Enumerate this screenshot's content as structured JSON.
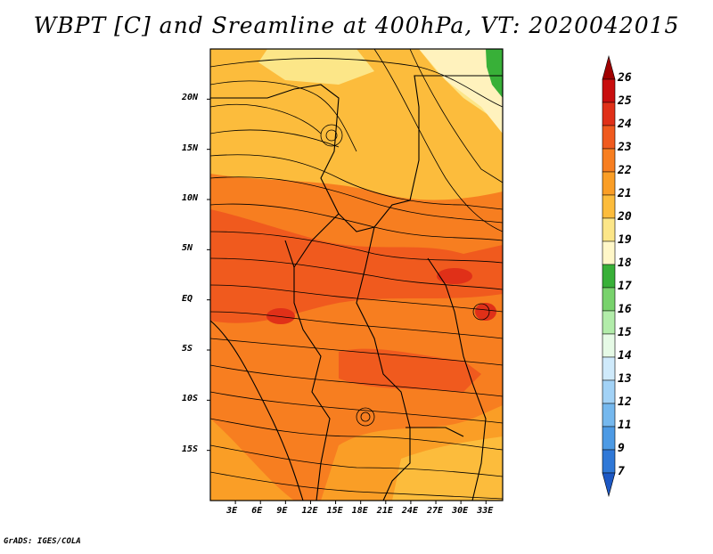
{
  "title": "WBPT [C] and Sreamline at 400hPa, VT: 2020042015",
  "footer": "GrADS: IGES/COLA",
  "chart_data": {
    "type": "map",
    "variable": "Wet-bulb potential temperature (C) with streamlines, 400 hPa",
    "valid_time": "2020042015",
    "lon_range": [
      0,
      35
    ],
    "lat_range": [
      -20,
      25
    ],
    "x_ticks": [
      {
        "value": 3,
        "label": "3E"
      },
      {
        "value": 6,
        "label": "6E"
      },
      {
        "value": 9,
        "label": "9E"
      },
      {
        "value": 12,
        "label": "12E"
      },
      {
        "value": 15,
        "label": "15E"
      },
      {
        "value": 18,
        "label": "18E"
      },
      {
        "value": 21,
        "label": "21E"
      },
      {
        "value": 24,
        "label": "24E"
      },
      {
        "value": 27,
        "label": "27E"
      },
      {
        "value": 30,
        "label": "30E"
      },
      {
        "value": 33,
        "label": "33E"
      }
    ],
    "y_ticks": [
      {
        "value": 20,
        "label": "20N"
      },
      {
        "value": 15,
        "label": "15N"
      },
      {
        "value": 10,
        "label": "10N"
      },
      {
        "value": 5,
        "label": "5N"
      },
      {
        "value": 0,
        "label": "EQ"
      },
      {
        "value": -5,
        "label": "5S"
      },
      {
        "value": -10,
        "label": "10S"
      },
      {
        "value": -15,
        "label": "15S"
      }
    ],
    "colorbar": {
      "levels": [
        "26",
        "25",
        "24",
        "23",
        "22",
        "21",
        "20",
        "19",
        "18",
        "17",
        "16",
        "15",
        "14",
        "13",
        "12",
        "11",
        "9",
        "7"
      ],
      "colors": [
        "#a00000",
        "#c80e0e",
        "#e03018",
        "#f05a1e",
        "#f77e20",
        "#fa9e26",
        "#fcbc3c",
        "#fce688",
        "#fff7c8",
        "#38b038",
        "#78d26c",
        "#b2ecaa",
        "#e6fae6",
        "#cfeafb",
        "#a2d2f6",
        "#75b8ee",
        "#4d9ae4",
        "#2f78d7",
        "#1d58c4"
      ]
    }
  }
}
